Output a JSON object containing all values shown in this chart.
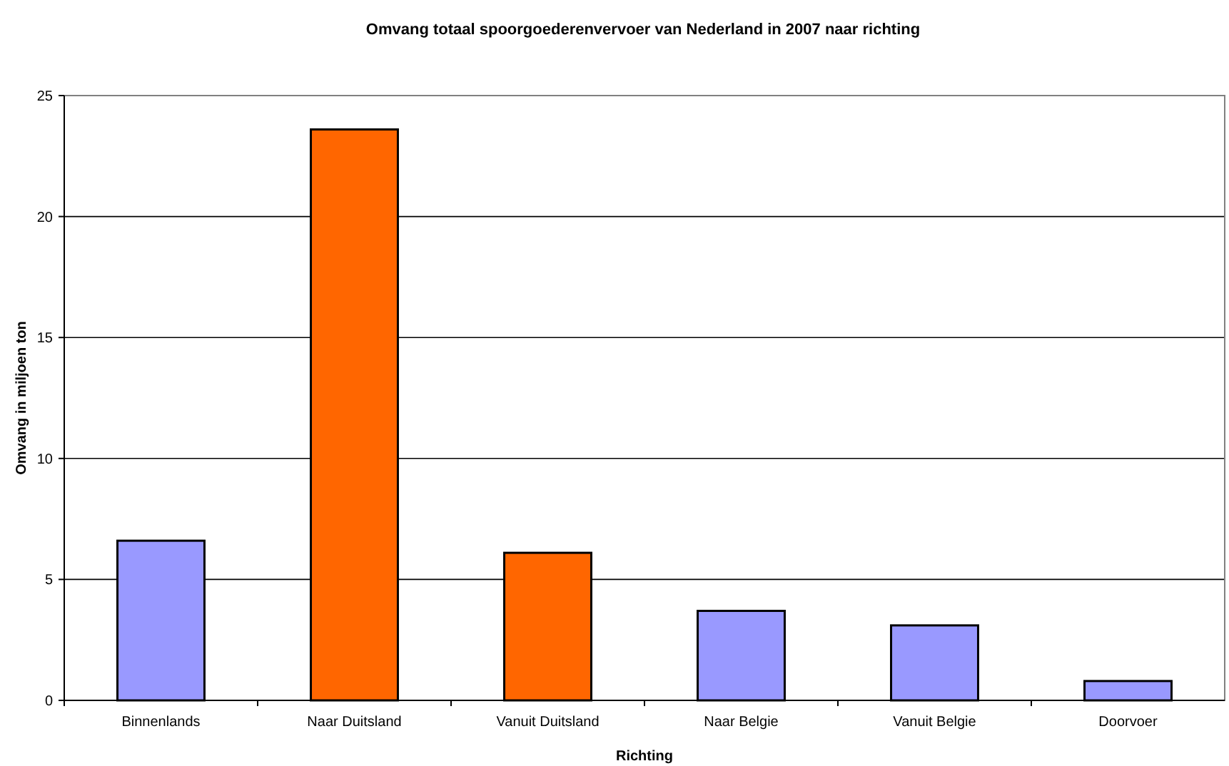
{
  "chart_data": {
    "type": "bar",
    "title": "Omvang totaal spoorgoederenvervoer van Nederland in 2007 naar richting",
    "xlabel": "Richting",
    "ylabel": "Omvang in miljoen ton",
    "categories": [
      "Binnenlands",
      "Naar Duitsland",
      "Vanuit Duitsland",
      "Naar Belgie",
      "Vanuit Belgie",
      "Doorvoer"
    ],
    "values": [
      6.6,
      23.6,
      6.1,
      3.7,
      3.1,
      0.8
    ],
    "colors": [
      "#9999ff",
      "#ff6600",
      "#ff6600",
      "#9999ff",
      "#9999ff",
      "#9999ff"
    ],
    "ylim": [
      0,
      25
    ],
    "yticks": [
      0,
      5,
      10,
      15,
      20,
      25
    ],
    "grid": "y"
  }
}
